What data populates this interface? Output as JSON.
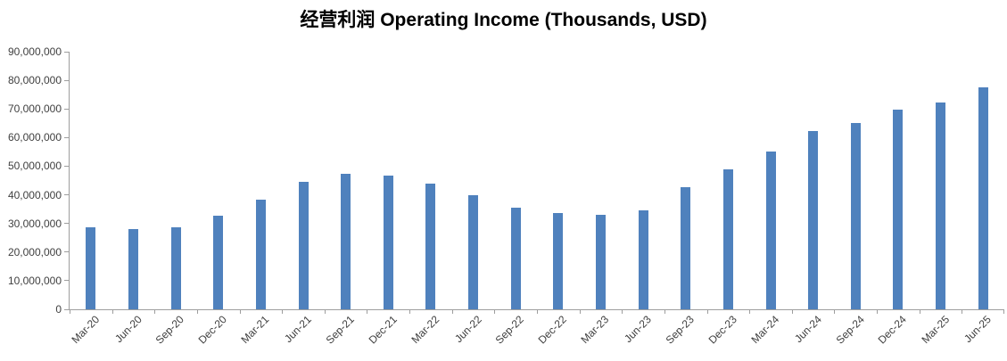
{
  "chart_data": {
    "type": "bar",
    "title": "经营利润 Operating Income (Thousands, USD)",
    "xlabel": "",
    "ylabel": "",
    "categories": [
      "Mar-20",
      "Jun-20",
      "Sep-20",
      "Dec-20",
      "Mar-21",
      "Jun-21",
      "Sep-21",
      "Dec-21",
      "Mar-22",
      "Jun-22",
      "Sep-22",
      "Dec-22",
      "Mar-23",
      "Jun-23",
      "Sep-23",
      "Dec-23",
      "Mar-24",
      "Jun-24",
      "Sep-24",
      "Dec-24",
      "Mar-25",
      "Jun-25"
    ],
    "values": [
      28600000,
      28000000,
      28600000,
      32800000,
      38400000,
      44600000,
      47300000,
      46700000,
      44000000,
      40000000,
      35400000,
      33700000,
      33100000,
      34500000,
      42700000,
      49000000,
      55100000,
      62200000,
      65100000,
      69900000,
      72100000,
      77500000
    ],
    "ylim": [
      0,
      90000000
    ],
    "ytick_step": 10000000,
    "ytick_labels": [
      "0",
      "10,000,000",
      "20,000,000",
      "30,000,000",
      "40,000,000",
      "50,000,000",
      "60,000,000",
      "70,000,000",
      "80,000,000",
      "90,000,000"
    ],
    "grid": false,
    "legend_position": "none",
    "colors": {
      "bar": "#4f81bd",
      "axis": "#9e9e9e",
      "tick_label": "#404040",
      "title": "#000000",
      "background": "#ffffff"
    }
  }
}
